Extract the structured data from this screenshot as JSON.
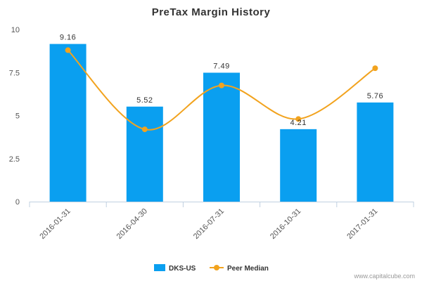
{
  "chart_data": {
    "type": "bar",
    "title": "PreTax Margin History",
    "categories": [
      "2016-01-31",
      "2016-04-30",
      "2016-07-31",
      "2016-10-31",
      "2017-01-31"
    ],
    "series": [
      {
        "name": "DKS-US",
        "type": "bar",
        "values": [
          9.16,
          5.52,
          7.49,
          4.21,
          5.76
        ],
        "data_labels": [
          "9.16",
          "5.52",
          "7.49",
          "4.21",
          "5.76"
        ],
        "color": "#0a9ff0"
      },
      {
        "name": "Peer Median",
        "type": "line",
        "smooth": true,
        "values": [
          8.8,
          4.2,
          6.75,
          4.8,
          7.75
        ],
        "color": "#f2a31e"
      }
    ],
    "yticks": [
      "0",
      "2.5",
      "5",
      "7.5",
      "10"
    ],
    "ylim": [
      0,
      10
    ],
    "grid": false,
    "legend_position": "bottom-center"
  },
  "credit": "www.capitalcube.com"
}
